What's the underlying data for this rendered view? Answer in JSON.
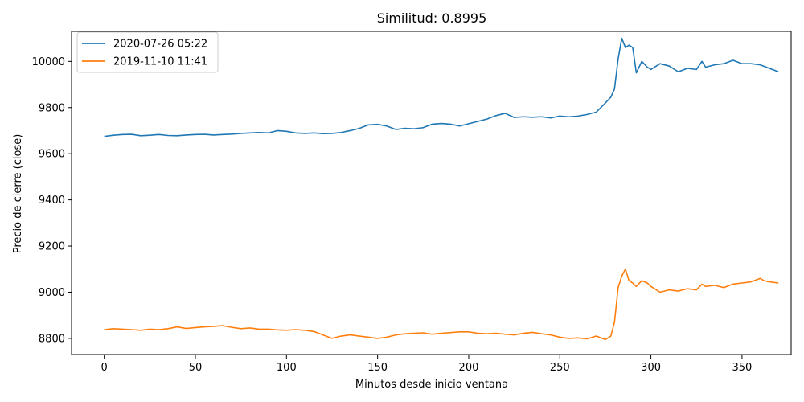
{
  "chart_data": {
    "type": "line",
    "title": "Similitud: 0.8995",
    "xlabel": "Minutos desde inicio ventana",
    "ylabel": "Precio de cierre (close)",
    "xlim": [
      -17.95,
      376.95
    ],
    "ylim": [
      8730,
      10130
    ],
    "xticks": [
      0,
      50,
      100,
      150,
      200,
      250,
      300,
      350
    ],
    "yticks": [
      8800,
      9000,
      9200,
      9400,
      9600,
      9800,
      10000
    ],
    "grid": false,
    "legend_position": "top-left",
    "series": [
      {
        "name": "2020-07-26 05:22",
        "color": "#1f77b4",
        "points": [
          [
            0,
            9675
          ],
          [
            5,
            9680
          ],
          [
            10,
            9683
          ],
          [
            15,
            9684
          ],
          [
            20,
            9678
          ],
          [
            25,
            9680
          ],
          [
            30,
            9683
          ],
          [
            35,
            9679
          ],
          [
            40,
            9678
          ],
          [
            45,
            9681
          ],
          [
            50,
            9683
          ],
          [
            55,
            9684
          ],
          [
            60,
            9681
          ],
          [
            65,
            9683
          ],
          [
            70,
            9685
          ],
          [
            75,
            9688
          ],
          [
            80,
            9690
          ],
          [
            85,
            9692
          ],
          [
            90,
            9690
          ],
          [
            95,
            9700
          ],
          [
            100,
            9697
          ],
          [
            105,
            9690
          ],
          [
            110,
            9688
          ],
          [
            115,
            9690
          ],
          [
            120,
            9687
          ],
          [
            125,
            9688
          ],
          [
            130,
            9692
          ],
          [
            135,
            9700
          ],
          [
            140,
            9710
          ],
          [
            145,
            9725
          ],
          [
            150,
            9727
          ],
          [
            155,
            9720
          ],
          [
            160,
            9705
          ],
          [
            165,
            9710
          ],
          [
            170,
            9708
          ],
          [
            175,
            9713
          ],
          [
            180,
            9728
          ],
          [
            185,
            9731
          ],
          [
            190,
            9728
          ],
          [
            195,
            9720
          ],
          [
            200,
            9730
          ],
          [
            205,
            9740
          ],
          [
            210,
            9750
          ],
          [
            215,
            9765
          ],
          [
            220,
            9775
          ],
          [
            225,
            9757
          ],
          [
            230,
            9760
          ],
          [
            235,
            9758
          ],
          [
            240,
            9760
          ],
          [
            245,
            9755
          ],
          [
            250,
            9763
          ],
          [
            255,
            9760
          ],
          [
            260,
            9763
          ],
          [
            265,
            9770
          ],
          [
            270,
            9780
          ],
          [
            275,
            9820
          ],
          [
            278,
            9845
          ],
          [
            280,
            9880
          ],
          [
            282,
            10010
          ],
          [
            284,
            10100
          ],
          [
            286,
            10060
          ],
          [
            288,
            10070
          ],
          [
            290,
            10060
          ],
          [
            292,
            9950
          ],
          [
            295,
            10000
          ],
          [
            298,
            9975
          ],
          [
            300,
            9965
          ],
          [
            305,
            9990
          ],
          [
            310,
            9980
          ],
          [
            315,
            9955
          ],
          [
            320,
            9970
          ],
          [
            325,
            9965
          ],
          [
            328,
            10000
          ],
          [
            330,
            9975
          ],
          [
            335,
            9985
          ],
          [
            340,
            9990
          ],
          [
            345,
            10005
          ],
          [
            350,
            9990
          ],
          [
            355,
            9990
          ],
          [
            360,
            9985
          ],
          [
            365,
            9970
          ],
          [
            370,
            9955
          ]
        ]
      },
      {
        "name": "2019-11-10 11:41",
        "color": "#ff7f0e",
        "points": [
          [
            0,
            8838
          ],
          [
            5,
            8842
          ],
          [
            10,
            8840
          ],
          [
            15,
            8838
          ],
          [
            20,
            8835
          ],
          [
            25,
            8840
          ],
          [
            30,
            8838
          ],
          [
            35,
            8842
          ],
          [
            40,
            8850
          ],
          [
            45,
            8843
          ],
          [
            50,
            8847
          ],
          [
            55,
            8850
          ],
          [
            60,
            8852
          ],
          [
            65,
            8855
          ],
          [
            70,
            8848
          ],
          [
            75,
            8842
          ],
          [
            80,
            8845
          ],
          [
            85,
            8840
          ],
          [
            90,
            8840
          ],
          [
            95,
            8837
          ],
          [
            100,
            8835
          ],
          [
            105,
            8838
          ],
          [
            110,
            8835
          ],
          [
            115,
            8830
          ],
          [
            120,
            8815
          ],
          [
            125,
            8800
          ],
          [
            130,
            8810
          ],
          [
            135,
            8815
          ],
          [
            140,
            8810
          ],
          [
            145,
            8805
          ],
          [
            150,
            8800
          ],
          [
            155,
            8805
          ],
          [
            160,
            8815
          ],
          [
            165,
            8820
          ],
          [
            170,
            8822
          ],
          [
            175,
            8824
          ],
          [
            180,
            8818
          ],
          [
            185,
            8822
          ],
          [
            190,
            8825
          ],
          [
            195,
            8828
          ],
          [
            200,
            8828
          ],
          [
            205,
            8822
          ],
          [
            210,
            8820
          ],
          [
            215,
            8822
          ],
          [
            220,
            8818
          ],
          [
            225,
            8815
          ],
          [
            230,
            8822
          ],
          [
            235,
            8826
          ],
          [
            240,
            8820
          ],
          [
            245,
            8815
          ],
          [
            250,
            8805
          ],
          [
            255,
            8800
          ],
          [
            260,
            8802
          ],
          [
            265,
            8798
          ],
          [
            270,
            8810
          ],
          [
            275,
            8795
          ],
          [
            278,
            8810
          ],
          [
            280,
            8870
          ],
          [
            282,
            9020
          ],
          [
            284,
            9070
          ],
          [
            286,
            9100
          ],
          [
            288,
            9050
          ],
          [
            290,
            9040
          ],
          [
            292,
            9025
          ],
          [
            295,
            9050
          ],
          [
            298,
            9040
          ],
          [
            300,
            9025
          ],
          [
            305,
            9000
          ],
          [
            310,
            9010
          ],
          [
            315,
            9005
          ],
          [
            320,
            9015
          ],
          [
            325,
            9010
          ],
          [
            328,
            9035
          ],
          [
            330,
            9025
          ],
          [
            335,
            9030
          ],
          [
            340,
            9020
          ],
          [
            345,
            9035
          ],
          [
            350,
            9040
          ],
          [
            355,
            9045
          ],
          [
            360,
            9060
          ],
          [
            362,
            9050
          ],
          [
            365,
            9045
          ],
          [
            370,
            9040
          ]
        ]
      }
    ]
  }
}
